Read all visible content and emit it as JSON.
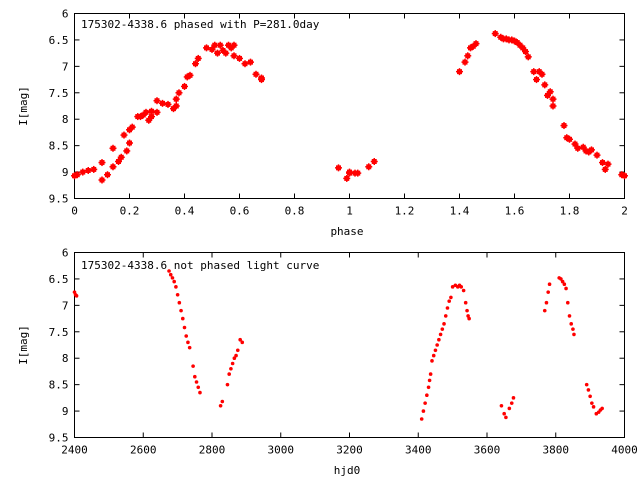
{
  "chart_data": [
    {
      "type": "scatter",
      "title": "175302-4338.6 phased with P=281.0day",
      "xlabel": "phase",
      "ylabel": "I[mag]",
      "xlim": [
        0,
        2
      ],
      "ylim": [
        9.5,
        6
      ],
      "y_inverted": true,
      "x_ticks": [
        0,
        0.2,
        0.4,
        0.6,
        0.8,
        1,
        1.2,
        1.4,
        1.6,
        1.8,
        2
      ],
      "x_tick_labels": [
        "0",
        "0.2",
        "0.4",
        "0.6",
        "0.8",
        "1",
        "1.2",
        "1.4",
        "1.6",
        "1.8",
        "2"
      ],
      "y_ticks": [
        6,
        6.5,
        7,
        7.5,
        8,
        8.5,
        9,
        9.5
      ],
      "y_tick_labels": [
        "6",
        "6.5",
        "7",
        "7.5",
        "8",
        "8.5",
        "9",
        "9.5"
      ],
      "marker": "cross",
      "series_color": "#ff0000",
      "points": [
        [
          0.0,
          9.07
        ],
        [
          0.01,
          9.05
        ],
        [
          0.03,
          9.0
        ],
        [
          0.05,
          8.97
        ],
        [
          0.07,
          8.95
        ],
        [
          0.1,
          9.15
        ],
        [
          0.1,
          8.82
        ],
        [
          0.12,
          9.05
        ],
        [
          0.14,
          8.9
        ],
        [
          0.14,
          8.55
        ],
        [
          0.16,
          8.8
        ],
        [
          0.17,
          8.72
        ],
        [
          0.18,
          8.3
        ],
        [
          0.19,
          8.6
        ],
        [
          0.2,
          8.2
        ],
        [
          0.2,
          8.45
        ],
        [
          0.21,
          8.15
        ],
        [
          0.23,
          7.95
        ],
        [
          0.24,
          7.95
        ],
        [
          0.25,
          7.92
        ],
        [
          0.26,
          7.87
        ],
        [
          0.27,
          8.02
        ],
        [
          0.28,
          7.85
        ],
        [
          0.28,
          7.95
        ],
        [
          0.3,
          7.87
        ],
        [
          0.3,
          7.65
        ],
        [
          0.32,
          7.7
        ],
        [
          0.34,
          7.72
        ],
        [
          0.36,
          7.8
        ],
        [
          0.37,
          7.75
        ],
        [
          0.37,
          7.62
        ],
        [
          0.38,
          7.5
        ],
        [
          0.4,
          7.38
        ],
        [
          0.41,
          7.2
        ],
        [
          0.42,
          7.17
        ],
        [
          0.44,
          6.95
        ],
        [
          0.45,
          6.85
        ],
        [
          0.48,
          6.65
        ],
        [
          0.5,
          6.68
        ],
        [
          0.51,
          6.6
        ],
        [
          0.52,
          6.75
        ],
        [
          0.53,
          6.6
        ],
        [
          0.54,
          6.7
        ],
        [
          0.55,
          6.75
        ],
        [
          0.56,
          6.6
        ],
        [
          0.57,
          6.65
        ],
        [
          0.58,
          6.8
        ],
        [
          0.58,
          6.6
        ],
        [
          0.6,
          6.85
        ],
        [
          0.62,
          6.95
        ],
        [
          0.64,
          6.92
        ],
        [
          0.66,
          7.15
        ],
        [
          0.68,
          7.25
        ],
        [
          0.68,
          7.22
        ],
        [
          0.96,
          8.92
        ],
        [
          0.99,
          9.12
        ],
        [
          1.0,
          9.02
        ],
        [
          1.0,
          9.0
        ],
        [
          1.02,
          9.02
        ],
        [
          1.03,
          9.02
        ],
        [
          1.07,
          8.9
        ],
        [
          1.09,
          8.8
        ],
        [
          1.4,
          7.1
        ],
        [
          1.42,
          6.92
        ],
        [
          1.43,
          6.8
        ],
        [
          1.44,
          6.65
        ],
        [
          1.45,
          6.62
        ],
        [
          1.46,
          6.57
        ],
        [
          1.53,
          6.38
        ],
        [
          1.55,
          6.45
        ],
        [
          1.56,
          6.48
        ],
        [
          1.57,
          6.48
        ],
        [
          1.58,
          6.5
        ],
        [
          1.59,
          6.5
        ],
        [
          1.6,
          6.52
        ],
        [
          1.61,
          6.55
        ],
        [
          1.62,
          6.6
        ],
        [
          1.63,
          6.65
        ],
        [
          1.64,
          6.72
        ],
        [
          1.65,
          6.82
        ],
        [
          1.67,
          7.1
        ],
        [
          1.68,
          7.25
        ],
        [
          1.69,
          7.1
        ],
        [
          1.7,
          7.15
        ],
        [
          1.71,
          7.35
        ],
        [
          1.72,
          7.55
        ],
        [
          1.73,
          7.48
        ],
        [
          1.74,
          7.75
        ],
        [
          1.74,
          7.62
        ],
        [
          1.78,
          8.12
        ],
        [
          1.79,
          8.35
        ],
        [
          1.8,
          8.38
        ],
        [
          1.82,
          8.47
        ],
        [
          1.83,
          8.55
        ],
        [
          1.85,
          8.53
        ],
        [
          1.86,
          8.6
        ],
        [
          1.87,
          8.62
        ],
        [
          1.88,
          8.58
        ],
        [
          1.9,
          8.68
        ],
        [
          1.92,
          8.82
        ],
        [
          1.93,
          8.95
        ],
        [
          1.94,
          8.85
        ],
        [
          1.99,
          9.05
        ],
        [
          2.0,
          9.07
        ]
      ]
    },
    {
      "type": "scatter",
      "title": "175302-4338.6 not phased light curve",
      "xlabel": "hjd0",
      "ylabel": "I[mag]",
      "xlim": [
        2400,
        4000
      ],
      "ylim": [
        9.5,
        6
      ],
      "y_inverted": true,
      "x_ticks": [
        2400,
        2600,
        2800,
        3000,
        3200,
        3400,
        3600,
        3800,
        4000
      ],
      "x_tick_labels": [
        "2400",
        "2600",
        "2800",
        "3000",
        "3200",
        "3400",
        "3600",
        "3800",
        "4000"
      ],
      "y_ticks": [
        6,
        6.5,
        7,
        7.5,
        8,
        8.5,
        9,
        9.5
      ],
      "y_tick_labels": [
        "6",
        "6.5",
        "7",
        "7.5",
        "8",
        "8.5",
        "9",
        "9.5"
      ],
      "marker": "dot",
      "series_color": "#ff0000",
      "points": [
        [
          2400,
          6.75
        ],
        [
          2403,
          6.8
        ],
        [
          2406,
          6.82
        ],
        [
          2675,
          6.35
        ],
        [
          2680,
          6.42
        ],
        [
          2685,
          6.48
        ],
        [
          2690,
          6.55
        ],
        [
          2695,
          6.65
        ],
        [
          2700,
          6.8
        ],
        [
          2705,
          6.95
        ],
        [
          2710,
          7.1
        ],
        [
          2715,
          7.25
        ],
        [
          2720,
          7.42
        ],
        [
          2725,
          7.58
        ],
        [
          2730,
          7.7
        ],
        [
          2735,
          7.8
        ],
        [
          2745,
          8.15
        ],
        [
          2750,
          8.35
        ],
        [
          2755,
          8.45
        ],
        [
          2760,
          8.55
        ],
        [
          2765,
          8.65
        ],
        [
          2825,
          8.9
        ],
        [
          2830,
          8.82
        ],
        [
          2845,
          8.5
        ],
        [
          2850,
          8.3
        ],
        [
          2855,
          8.2
        ],
        [
          2860,
          8.1
        ],
        [
          2865,
          8.0
        ],
        [
          2870,
          7.95
        ],
        [
          2875,
          7.85
        ],
        [
          2882,
          7.65
        ],
        [
          2888,
          7.7
        ],
        [
          3410,
          9.15
        ],
        [
          3415,
          9.0
        ],
        [
          3420,
          8.85
        ],
        [
          3425,
          8.7
        ],
        [
          3430,
          8.55
        ],
        [
          3433,
          8.42
        ],
        [
          3436,
          8.3
        ],
        [
          3440,
          8.05
        ],
        [
          3445,
          7.95
        ],
        [
          3450,
          7.85
        ],
        [
          3455,
          7.75
        ],
        [
          3460,
          7.65
        ],
        [
          3465,
          7.55
        ],
        [
          3470,
          7.45
        ],
        [
          3475,
          7.35
        ],
        [
          3480,
          7.2
        ],
        [
          3485,
          7.05
        ],
        [
          3490,
          6.92
        ],
        [
          3495,
          6.85
        ],
        [
          3500,
          6.65
        ],
        [
          3508,
          6.62
        ],
        [
          3515,
          6.65
        ],
        [
          3520,
          6.62
        ],
        [
          3525,
          6.65
        ],
        [
          3532,
          6.72
        ],
        [
          3538,
          6.95
        ],
        [
          3542,
          7.1
        ],
        [
          3545,
          7.2
        ],
        [
          3548,
          7.25
        ],
        [
          3642,
          8.9
        ],
        [
          3650,
          9.05
        ],
        [
          3655,
          9.12
        ],
        [
          3665,
          8.95
        ],
        [
          3672,
          8.85
        ],
        [
          3677,
          8.75
        ],
        [
          3768,
          7.1
        ],
        [
          3773,
          6.95
        ],
        [
          3778,
          6.75
        ],
        [
          3782,
          6.6
        ],
        [
          3810,
          6.48
        ],
        [
          3815,
          6.5
        ],
        [
          3820,
          6.55
        ],
        [
          3825,
          6.6
        ],
        [
          3830,
          6.68
        ],
        [
          3835,
          6.95
        ],
        [
          3840,
          7.2
        ],
        [
          3845,
          7.35
        ],
        [
          3850,
          7.45
        ],
        [
          3853,
          7.55
        ],
        [
          3890,
          8.5
        ],
        [
          3895,
          8.6
        ],
        [
          3900,
          8.72
        ],
        [
          3905,
          8.85
        ],
        [
          3910,
          8.92
        ],
        [
          3918,
          9.05
        ],
        [
          3925,
          9.02
        ],
        [
          3930,
          8.98
        ],
        [
          3935,
          8.95
        ]
      ]
    }
  ]
}
